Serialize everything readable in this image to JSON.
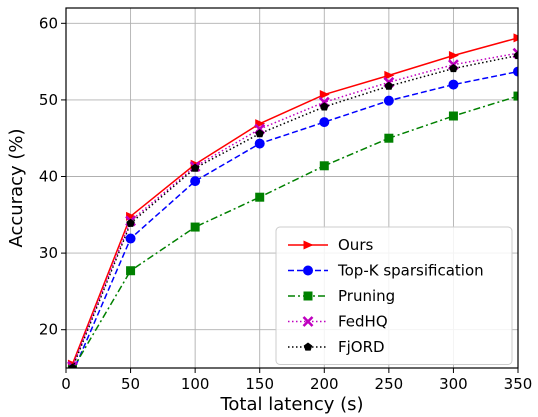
{
  "chart_data": {
    "type": "line",
    "xlabel": "Total latency (s)",
    "ylabel": "Accuracy (%)",
    "xlim": [
      0,
      350
    ],
    "ylim": [
      15,
      62
    ],
    "xticks": [
      0,
      50,
      100,
      150,
      200,
      250,
      300,
      350
    ],
    "yticks": [
      20,
      30,
      40,
      50,
      60
    ],
    "grid": true,
    "legend_position": "bottom-right",
    "x": [
      5,
      50,
      100,
      150,
      200,
      250,
      300,
      350
    ],
    "series": [
      {
        "name": "Ours",
        "color": "#ff0000",
        "dash": "solid",
        "marker": "triangle-right",
        "values": [
          15.5,
          34.8,
          41.6,
          46.9,
          50.7,
          53.2,
          55.8,
          58.1
        ]
      },
      {
        "name": "Top-K sparsification",
        "color": "#0000ff",
        "dash": "dashed",
        "marker": "circle",
        "values": [
          14.3,
          31.9,
          39.4,
          44.3,
          47.1,
          49.9,
          52.0,
          53.7
        ]
      },
      {
        "name": "Pruning",
        "color": "#008000",
        "dash": "dashdot",
        "marker": "square",
        "values": [
          14.8,
          27.7,
          33.4,
          37.3,
          41.4,
          45.0,
          47.9,
          50.5
        ]
      },
      {
        "name": "FedHQ",
        "color": "#bf00bf",
        "dash": "dotted",
        "marker": "x",
        "values": [
          15.2,
          34.2,
          41.3,
          46.2,
          49.7,
          52.3,
          54.6,
          56.1
        ]
      },
      {
        "name": "FjORD",
        "color": "#000000",
        "dash": "dotted",
        "marker": "pentagon",
        "values": [
          15.0,
          33.9,
          41.1,
          45.6,
          49.1,
          51.8,
          54.1,
          55.8
        ]
      }
    ]
  }
}
